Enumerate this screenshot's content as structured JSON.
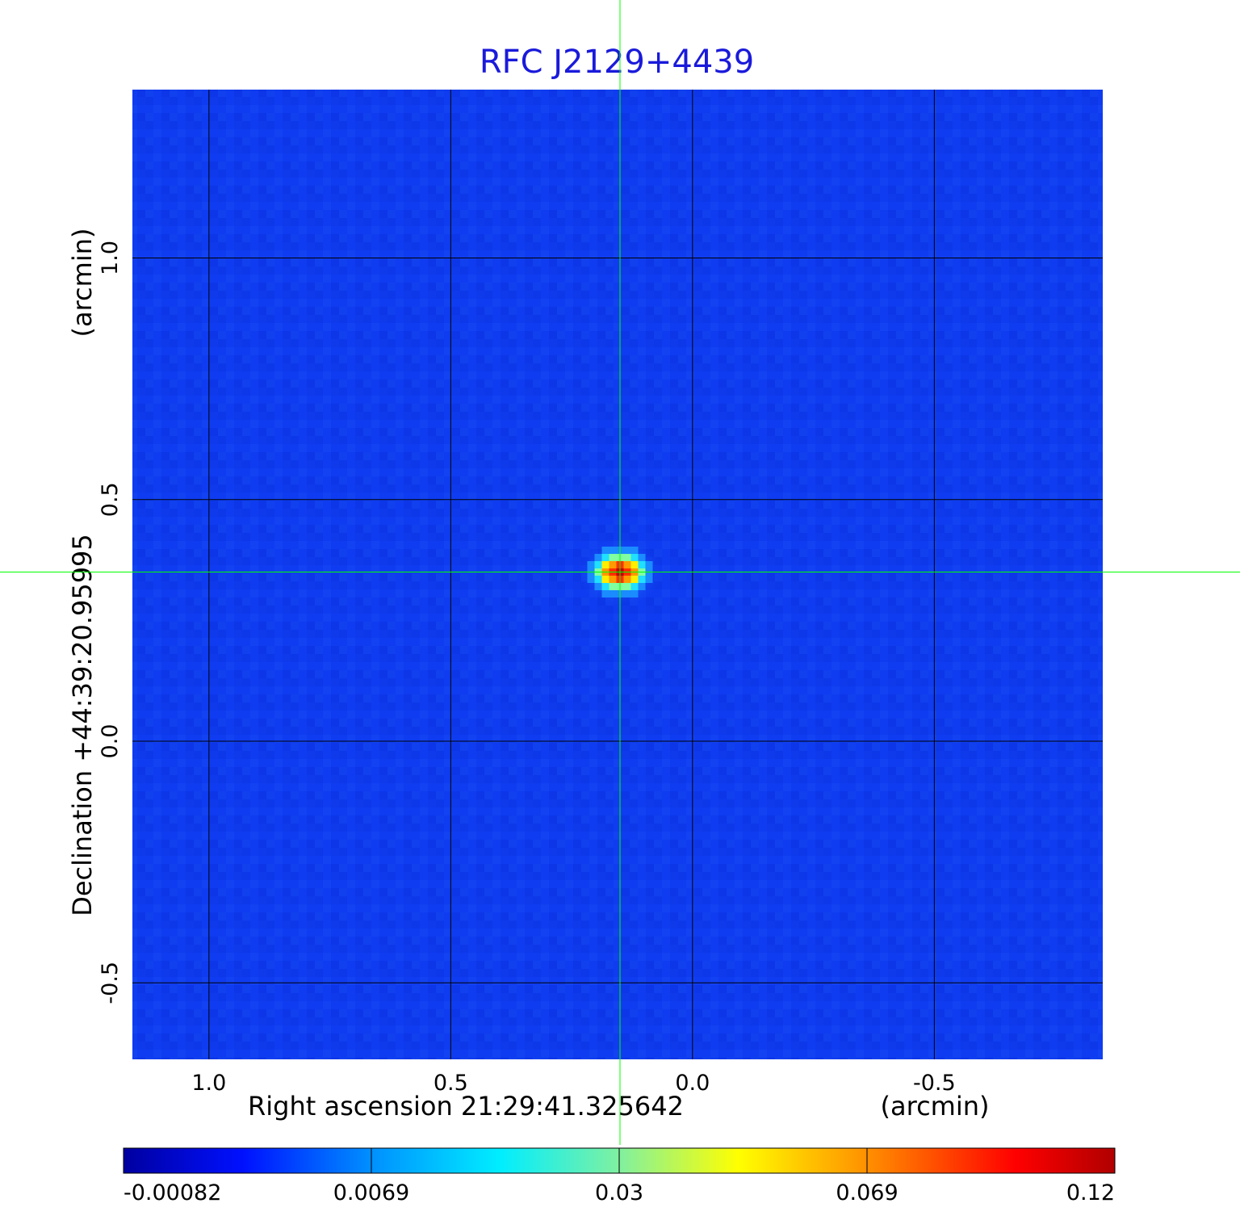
{
  "chart_data": {
    "type": "heatmap",
    "title": "RFC J2129+4439",
    "xlabel": "Right ascension  21:29:41.325642",
    "xunit": "(arcmin)",
    "ylabel": "Declination  +44:39:20.95995",
    "yunit": "(arcmin)",
    "xlim": [
      1.16,
      -0.85
    ],
    "ylim": [
      -0.66,
      1.35
    ],
    "xticks": [
      1.0,
      0.5,
      0.0,
      -0.5
    ],
    "xtick_labels": [
      "1.0",
      "0.5",
      "0.0",
      "-0.5"
    ],
    "yticks": [
      1.0,
      0.5,
      0.0,
      -0.5
    ],
    "ytick_labels": [
      "1.0",
      "0.5",
      "0.0",
      "-0.5"
    ],
    "grid": true,
    "crosshair": {
      "x": 0.15,
      "y": 0.35,
      "color": "#00ff00"
    },
    "source": {
      "x": 0.15,
      "y": 0.35,
      "peak": 0.12
    },
    "colorbar": {
      "orientation": "horizontal",
      "tick_labels": [
        "-0.00082",
        "0.0069",
        "0.03",
        "0.069",
        "0.12"
      ],
      "colors": [
        "#0000a0",
        "#0000ff",
        "#00e5ff",
        "#ffff00",
        "#ff0000",
        "#b00000"
      ]
    }
  }
}
